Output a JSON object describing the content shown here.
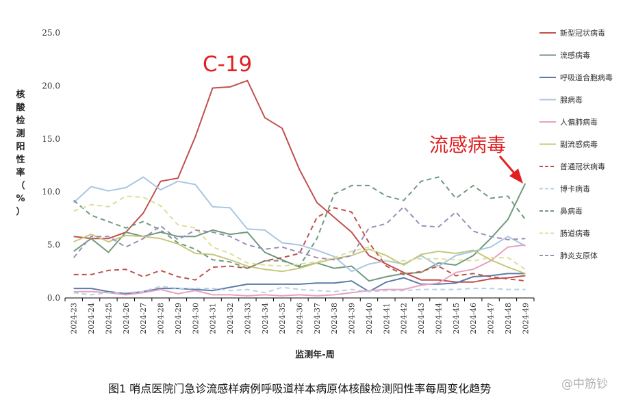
{
  "chart_data": {
    "type": "line",
    "title": "",
    "ylabel": "核酸检测阳性率（%）",
    "xlabel": "监测年-周",
    "ylim": [
      0,
      25
    ],
    "yticks": [
      "0.0",
      "5.0",
      "10.0",
      "15.0",
      "20.0",
      "25.0"
    ],
    "grid": false,
    "legend_position": "right",
    "categories": [
      "2024-23",
      "2024-24",
      "2024-25",
      "2024-26",
      "2024-27",
      "2024-28",
      "2024-29",
      "2024-30",
      "2024-31",
      "2024-32",
      "2024-33",
      "2024-34",
      "2024-35",
      "2024-36",
      "2024-37",
      "2024-38",
      "2024-39",
      "2024-40",
      "2024-41",
      "2024-42",
      "2024-43",
      "2024-44",
      "2024-45",
      "2024-46",
      "2024-47",
      "2024-48",
      "2024-49"
    ],
    "series": [
      {
        "name": "新型冠状病毒",
        "color": "#c0504d",
        "dash": false,
        "values": [
          5.8,
          5.6,
          5.6,
          6.2,
          8.0,
          11.0,
          11.3,
          15.2,
          19.8,
          19.9,
          20.5,
          17.0,
          16.0,
          12.1,
          9.0,
          7.6,
          6.2,
          4.0,
          3.2,
          2.4,
          1.7,
          1.7,
          1.5,
          1.5,
          1.8,
          1.9,
          2.1
        ]
      },
      {
        "name": "流感病毒",
        "color": "#6f9a7d",
        "dash": false,
        "values": [
          4.4,
          5.6,
          4.3,
          6.2,
          5.8,
          6.2,
          5.8,
          5.8,
          6.4,
          6.0,
          6.2,
          4.3,
          3.6,
          2.9,
          3.3,
          2.8,
          3.0,
          1.6,
          2.0,
          2.3,
          2.4,
          3.3,
          3.1,
          4.0,
          5.6,
          7.4,
          10.8
        ]
      },
      {
        "name": "呼吸道合胞病毒",
        "color": "#5b7ca7",
        "dash": false,
        "values": [
          0.9,
          0.9,
          0.6,
          0.4,
          0.6,
          0.9,
          0.9,
          0.8,
          0.7,
          1.0,
          1.3,
          1.3,
          1.3,
          1.3,
          1.4,
          1.4,
          1.6,
          0.6,
          1.5,
          1.9,
          1.3,
          1.3,
          1.4,
          2.0,
          2.1,
          2.3,
          2.3
        ]
      },
      {
        "name": "腺病毒",
        "color": "#a8c6e2",
        "dash": false,
        "values": [
          9.0,
          10.5,
          10.1,
          10.4,
          11.4,
          10.2,
          11.0,
          10.7,
          8.6,
          8.5,
          6.5,
          6.4,
          5.2,
          5.0,
          4.5,
          3.9,
          2.5,
          3.2,
          3.5,
          3.2,
          4.0,
          3.0,
          4.0,
          4.4,
          4.8,
          5.8,
          4.9
        ]
      },
      {
        "name": "人偏肺病毒",
        "color": "#e8a0c0",
        "dash": false,
        "values": [
          0.6,
          0.6,
          0.5,
          0.3,
          0.5,
          0.8,
          0.4,
          0.7,
          0.3,
          0.3,
          0.2,
          0.3,
          0.2,
          0.3,
          0.2,
          0.3,
          0.5,
          0.7,
          0.8,
          0.8,
          1.2,
          1.4,
          2.4,
          2.7,
          3.5,
          4.8,
          5.0
        ]
      },
      {
        "name": "副流感病毒",
        "color": "#c5c87b",
        "dash": false,
        "values": [
          5.3,
          6.0,
          5.3,
          5.9,
          5.8,
          5.6,
          5.1,
          4.2,
          4.1,
          3.6,
          3.0,
          2.7,
          2.5,
          2.8,
          3.3,
          3.7,
          4.0,
          4.6,
          4.0,
          3.1,
          4.1,
          4.4,
          4.2,
          4.5,
          3.6,
          2.9,
          2.3
        ]
      },
      {
        "name": "普通冠状病毒",
        "color": "#c0504d",
        "dash": true,
        "values": [
          2.2,
          2.2,
          2.6,
          2.7,
          2.0,
          2.6,
          2.0,
          1.7,
          2.9,
          3.0,
          2.8,
          3.5,
          3.8,
          4.2,
          7.6,
          8.5,
          8.1,
          5.2,
          3.0,
          2.2,
          2.5,
          3.0,
          2.1,
          2.3,
          2.0,
          1.8,
          1.6
        ]
      },
      {
        "name": "博卡病毒",
        "color": "#b8cfe6",
        "dash": true,
        "values": [
          0.5,
          0.3,
          0.5,
          0.5,
          0.6,
          1.1,
          0.9,
          0.9,
          0.9,
          0.7,
          0.8,
          0.5,
          1.0,
          0.8,
          0.7,
          0.6,
          0.8,
          0.6,
          0.7,
          0.7,
          0.8,
          0.8,
          0.8,
          0.9,
          0.9,
          0.8,
          0.8
        ]
      },
      {
        "name": "鼻病毒",
        "color": "#6f9a7d",
        "dash": true,
        "values": [
          9.2,
          7.8,
          7.2,
          6.6,
          7.2,
          6.4,
          5.2,
          4.6,
          3.6,
          3.4,
          2.8,
          3.5,
          3.5,
          3.0,
          5.6,
          9.8,
          10.6,
          10.6,
          9.6,
          9.2,
          11.0,
          11.4,
          9.4,
          10.6,
          9.4,
          9.6,
          7.4
        ]
      },
      {
        "name": "肠道病毒",
        "color": "#dede9a",
        "dash": true,
        "values": [
          8.2,
          8.8,
          8.6,
          9.6,
          9.5,
          8.7,
          6.9,
          6.6,
          4.8,
          4.2,
          3.3,
          3.1,
          3.0,
          3.2,
          3.4,
          3.8,
          4.4,
          4.8,
          3.5,
          3.5,
          3.7,
          3.7,
          3.6,
          3.5,
          3.8,
          3.8,
          2.7
        ]
      },
      {
        "name": "肺炎支原体",
        "color": "#9e8cb8",
        "dash": true,
        "values": [
          3.8,
          5.8,
          5.8,
          4.8,
          5.6,
          6.8,
          5.5,
          6.4,
          6.2,
          5.8,
          5.0,
          4.6,
          4.8,
          4.3,
          3.8,
          3.6,
          4.0,
          6.6,
          7.0,
          8.6,
          6.8,
          6.7,
          8.1,
          6.3,
          5.8,
          5.5,
          5.6
        ]
      }
    ]
  },
  "annotations": {
    "c19_label": "C-19",
    "flu_label": "流感病毒"
  },
  "caption": "图1 哨点医院门急诊流感样病例呼吸道样本病原体核酸检测阳性率每周变化趋势",
  "watermark": "@中筋钞",
  "colors": {
    "annotation": "#e02020",
    "axis": "#000000"
  }
}
